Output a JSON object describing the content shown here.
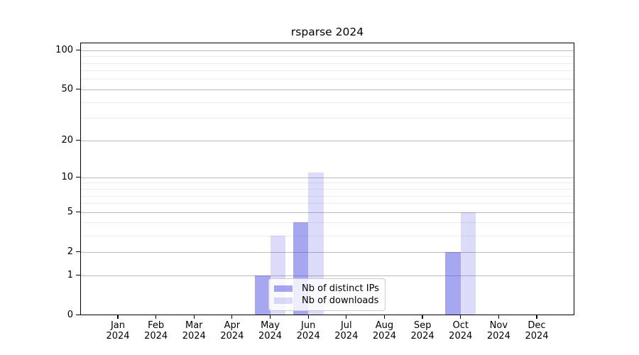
{
  "chart_data": {
    "type": "bar",
    "title": "rsparse 2024",
    "xlabel": "",
    "ylabel": "",
    "year_label": "2024",
    "categories": [
      "Jan",
      "Feb",
      "Mar",
      "Apr",
      "May",
      "Jun",
      "Jul",
      "Aug",
      "Sep",
      "Oct",
      "Nov",
      "Dec"
    ],
    "series": [
      {
        "name": "Nb of distinct IPs",
        "color": "rgba(60,60,225,0.45)",
        "values": [
          0,
          0,
          0,
          0,
          1,
          4,
          0,
          0,
          0,
          2,
          0,
          0
        ]
      },
      {
        "name": "Nb of downloads",
        "color": "rgba(60,60,225,0.18)",
        "values": [
          0,
          0,
          0,
          0,
          3,
          11,
          0,
          0,
          0,
          5,
          0,
          0
        ]
      }
    ],
    "y_scale": "log1p",
    "ylim": [
      0,
      115
    ],
    "y_ticks": [
      0,
      1,
      2,
      5,
      10,
      20,
      50,
      100
    ],
    "y_minor_ticks": [
      3,
      4,
      6,
      7,
      8,
      9,
      30,
      40,
      60,
      70,
      80,
      90
    ],
    "grid": true,
    "legend_position": "lower center"
  },
  "colors": {
    "major_grid": "#bbbbbb",
    "minor_grid": "#ededed",
    "axis": "#000000",
    "background": "#ffffff",
    "legend_border": "#cccccc"
  }
}
